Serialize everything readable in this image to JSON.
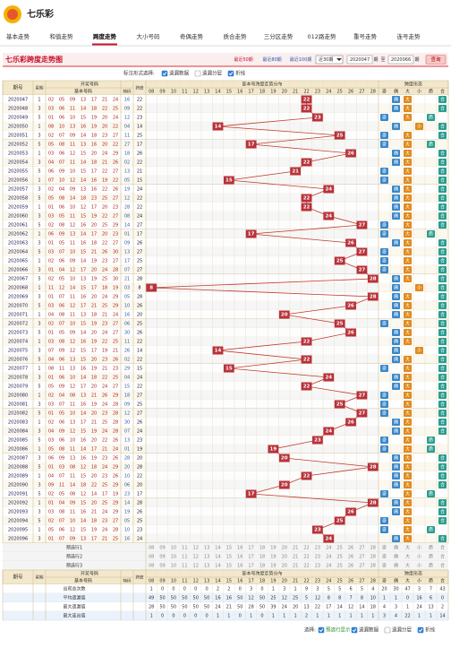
{
  "header": {
    "title": "七乐彩"
  },
  "nav": {
    "items": [
      "基本走势",
      "和值走势",
      "跨度走势",
      "大小号码",
      "奇偶走势",
      "质合走势",
      "三分区走势",
      "012路走势",
      "重号走势",
      "连号走势"
    ],
    "active": 2
  },
  "toolbar": {
    "title": "七乐彩跨度走势图",
    "ranges": [
      "最近50期",
      "最近80期",
      "最近100期"
    ],
    "range_active": 0,
    "select": "近30期",
    "from": "2020047",
    "period_word": "期",
    "to_word": "至",
    "to": "2020066",
    "query": "查询"
  },
  "options": {
    "label": "标注形式选择:",
    "items": [
      "遗漏数据",
      "遗漏分层",
      "折线"
    ],
    "checked": [
      true,
      false,
      true
    ]
  },
  "table": {
    "headers": {
      "period": "期号",
      "week": "星期",
      "draw": "开奖号码",
      "base": "基本号码",
      "special": "特码",
      "span": "跨度",
      "dist": "基本号跨度走势分布",
      "form": "跨度形态"
    },
    "columns": [
      "08",
      "09",
      "10",
      "11",
      "12",
      "13",
      "14",
      "15",
      "16",
      "17",
      "18",
      "19",
      "20",
      "21",
      "22",
      "23",
      "24",
      "25",
      "26",
      "27",
      "28"
    ],
    "forms": [
      "奇",
      "偶",
      "大",
      "小",
      "质",
      "合"
    ],
    "rows": [
      {
        "period": "2020047",
        "week": "1",
        "nums": [
          "02",
          "05",
          "09",
          "13",
          "17",
          "21",
          "24"
        ],
        "special": "16",
        "span": 22
      },
      {
        "period": "2020048",
        "week": "3",
        "nums": [
          "03",
          "06",
          "11",
          "14",
          "18",
          "22",
          "25"
        ],
        "special": "09",
        "span": 22
      },
      {
        "period": "2020049",
        "week": "5",
        "nums": [
          "01",
          "06",
          "10",
          "15",
          "19",
          "20",
          "24"
        ],
        "special": "12",
        "span": 23
      },
      {
        "period": "2020050",
        "week": "1",
        "nums": [
          "08",
          "10",
          "13",
          "16",
          "19",
          "20",
          "22"
        ],
        "special": "04",
        "span": 14
      },
      {
        "period": "2020051",
        "week": "3",
        "nums": [
          "02",
          "07",
          "09",
          "14",
          "18",
          "23",
          "27"
        ],
        "special": "11",
        "span": 25
      },
      {
        "period": "2020052",
        "week": "5",
        "nums": [
          "05",
          "08",
          "11",
          "13",
          "16",
          "20",
          "22"
        ],
        "special": "27",
        "span": 17
      },
      {
        "period": "2020053",
        "week": "1",
        "nums": [
          "03",
          "06",
          "12",
          "15",
          "20",
          "24",
          "29"
        ],
        "special": "18",
        "span": 26
      },
      {
        "period": "2020054",
        "week": "3",
        "nums": [
          "04",
          "07",
          "11",
          "14",
          "18",
          "21",
          "26"
        ],
        "special": "02",
        "span": 22
      },
      {
        "period": "2020055",
        "week": "5",
        "nums": [
          "06",
          "09",
          "10",
          "15",
          "17",
          "22",
          "27"
        ],
        "special": "13",
        "span": 21
      },
      {
        "period": "2020056",
        "week": "1",
        "nums": [
          "07",
          "10",
          "12",
          "14",
          "16",
          "19",
          "22"
        ],
        "special": "05",
        "span": 15
      },
      {
        "period": "2020057",
        "week": "3",
        "nums": [
          "02",
          "04",
          "09",
          "13",
          "16",
          "22",
          "26"
        ],
        "special": "19",
        "span": 24
      },
      {
        "period": "2020058",
        "week": "5",
        "nums": [
          "05",
          "08",
          "14",
          "18",
          "23",
          "25",
          "27"
        ],
        "special": "12",
        "span": 22
      },
      {
        "period": "2020059",
        "week": "1",
        "nums": [
          "01",
          "06",
          "10",
          "12",
          "17",
          "20",
          "23"
        ],
        "special": "28",
        "span": 22
      },
      {
        "period": "2020060",
        "week": "3",
        "nums": [
          "03",
          "05",
          "11",
          "15",
          "19",
          "22",
          "27"
        ],
        "special": "08",
        "span": 24
      },
      {
        "period": "2020061",
        "week": "5",
        "nums": [
          "02",
          "08",
          "12",
          "16",
          "20",
          "25",
          "29"
        ],
        "special": "14",
        "span": 27
      },
      {
        "period": "2020062",
        "week": "1",
        "nums": [
          "06",
          "09",
          "13",
          "14",
          "17",
          "20",
          "23"
        ],
        "special": "01",
        "span": 17
      },
      {
        "period": "2020063",
        "week": "3",
        "nums": [
          "01",
          "05",
          "11",
          "16",
          "18",
          "22",
          "27"
        ],
        "special": "09",
        "span": 26
      },
      {
        "period": "2020064",
        "week": "5",
        "nums": [
          "03",
          "07",
          "10",
          "15",
          "21",
          "26",
          "30"
        ],
        "special": "13",
        "span": 27
      },
      {
        "period": "2020065",
        "week": "1",
        "nums": [
          "02",
          "06",
          "09",
          "14",
          "19",
          "23",
          "27"
        ],
        "special": "17",
        "span": 25
      },
      {
        "period": "2020066",
        "week": "3",
        "nums": [
          "01",
          "04",
          "12",
          "17",
          "20",
          "24",
          "28"
        ],
        "special": "07",
        "span": 27
      },
      {
        "period": "2020067",
        "week": "5",
        "nums": [
          "02",
          "05",
          "10",
          "13",
          "19",
          "25",
          "30"
        ],
        "special": "21",
        "span": 28
      },
      {
        "period": "2020068",
        "week": "1",
        "nums": [
          "11",
          "12",
          "14",
          "15",
          "17",
          "18",
          "19"
        ],
        "special": "03",
        "span": 8
      },
      {
        "period": "2020069",
        "week": "3",
        "nums": [
          "01",
          "07",
          "11",
          "16",
          "20",
          "24",
          "29"
        ],
        "special": "05",
        "span": 28
      },
      {
        "period": "2020070",
        "week": "5",
        "nums": [
          "03",
          "06",
          "12",
          "17",
          "21",
          "25",
          "29"
        ],
        "special": "10",
        "span": 26
      },
      {
        "period": "2020071",
        "week": "1",
        "nums": [
          "04",
          "08",
          "11",
          "13",
          "18",
          "21",
          "24"
        ],
        "special": "16",
        "span": 20
      },
      {
        "period": "2020072",
        "week": "3",
        "nums": [
          "02",
          "07",
          "10",
          "15",
          "19",
          "23",
          "27"
        ],
        "special": "06",
        "span": 25
      },
      {
        "period": "2020073",
        "week": "5",
        "nums": [
          "01",
          "05",
          "09",
          "14",
          "20",
          "24",
          "27"
        ],
        "special": "30",
        "span": 26
      },
      {
        "period": "2020074",
        "week": "1",
        "nums": [
          "03",
          "08",
          "12",
          "16",
          "19",
          "22",
          "25"
        ],
        "special": "11",
        "span": 22
      },
      {
        "period": "2020075",
        "week": "3",
        "nums": [
          "07",
          "09",
          "12",
          "15",
          "17",
          "19",
          "21"
        ],
        "special": "26",
        "span": 14
      },
      {
        "period": "2020076",
        "week": "5",
        "nums": [
          "04",
          "06",
          "13",
          "15",
          "20",
          "23",
          "26"
        ],
        "special": "02",
        "span": 22
      },
      {
        "period": "2020077",
        "week": "1",
        "nums": [
          "08",
          "11",
          "13",
          "16",
          "19",
          "21",
          "23"
        ],
        "special": "29",
        "span": 15
      },
      {
        "period": "2020078",
        "week": "3",
        "nums": [
          "01",
          "06",
          "10",
          "14",
          "18",
          "22",
          "25"
        ],
        "special": "04",
        "span": 24
      },
      {
        "period": "2020079",
        "week": "5",
        "nums": [
          "05",
          "09",
          "12",
          "17",
          "20",
          "24",
          "27"
        ],
        "special": "15",
        "span": 22
      },
      {
        "period": "2020080",
        "week": "1",
        "nums": [
          "02",
          "04",
          "08",
          "13",
          "21",
          "26",
          "29"
        ],
        "special": "18",
        "span": 27
      },
      {
        "period": "2020081",
        "week": "3",
        "nums": [
          "03",
          "07",
          "11",
          "16",
          "19",
          "24",
          "28"
        ],
        "special": "09",
        "span": 25
      },
      {
        "period": "2020082",
        "week": "5",
        "nums": [
          "01",
          "05",
          "10",
          "14",
          "20",
          "23",
          "28"
        ],
        "special": "12",
        "span": 27
      },
      {
        "period": "2020083",
        "week": "1",
        "nums": [
          "02",
          "06",
          "13",
          "17",
          "21",
          "25",
          "28"
        ],
        "special": "30",
        "span": 26
      },
      {
        "period": "2020084",
        "week": "3",
        "nums": [
          "04",
          "09",
          "12",
          "15",
          "19",
          "24",
          "28"
        ],
        "special": "07",
        "span": 24
      },
      {
        "period": "2020085",
        "week": "5",
        "nums": [
          "03",
          "06",
          "10",
          "16",
          "20",
          "22",
          "26"
        ],
        "special": "13",
        "span": 23
      },
      {
        "period": "2020086",
        "week": "1",
        "nums": [
          "05",
          "08",
          "11",
          "14",
          "17",
          "21",
          "24"
        ],
        "special": "01",
        "span": 19
      },
      {
        "period": "2020087",
        "week": "3",
        "nums": [
          "06",
          "09",
          "13",
          "16",
          "19",
          "23",
          "26"
        ],
        "special": "28",
        "span": 20
      },
      {
        "period": "2020088",
        "week": "5",
        "nums": [
          "01",
          "03",
          "08",
          "12",
          "18",
          "24",
          "29"
        ],
        "special": "20",
        "span": 28
      },
      {
        "period": "2020089",
        "week": "1",
        "nums": [
          "04",
          "07",
          "11",
          "15",
          "20",
          "23",
          "26"
        ],
        "special": "10",
        "span": 22
      },
      {
        "period": "2020090",
        "week": "3",
        "nums": [
          "09",
          "11",
          "14",
          "18",
          "22",
          "25",
          "29"
        ],
        "special": "06",
        "span": 20
      },
      {
        "period": "2020091",
        "week": "5",
        "nums": [
          "02",
          "05",
          "08",
          "12",
          "14",
          "17",
          "19"
        ],
        "special": "23",
        "span": 17
      },
      {
        "period": "2020092",
        "week": "1",
        "nums": [
          "01",
          "04",
          "09",
          "15",
          "20",
          "25",
          "29"
        ],
        "special": "14",
        "span": 28
      },
      {
        "period": "2020093",
        "week": "3",
        "nums": [
          "03",
          "08",
          "11",
          "16",
          "21",
          "24",
          "29"
        ],
        "special": "19",
        "span": 26
      },
      {
        "period": "2020094",
        "week": "5",
        "nums": [
          "02",
          "07",
          "10",
          "14",
          "18",
          "23",
          "27"
        ],
        "special": "05",
        "span": 25
      },
      {
        "period": "2020095",
        "week": "1",
        "nums": [
          "05",
          "06",
          "12",
          "15",
          "19",
          "24",
          "28"
        ],
        "special": "10",
        "span": 23
      },
      {
        "period": "2020096",
        "week": "3",
        "nums": [
          "01",
          "07",
          "09",
          "13",
          "17",
          "21",
          "25"
        ],
        "special": "16",
        "span": 24
      }
    ],
    "preselect": [
      "预选行1",
      "预选行2",
      "预选行3"
    ],
    "stats": [
      {
        "label": "出现总次数",
        "values": [
          1,
          0,
          0,
          0,
          0,
          0,
          2,
          2,
          0,
          3,
          0,
          1,
          3,
          1,
          9,
          3,
          5,
          5,
          6,
          5,
          4
        ],
        "forms": [
          20,
          30,
          47,
          3,
          7,
          43
        ]
      },
      {
        "label": "平均遗漏值",
        "values": [
          49,
          50,
          50,
          50,
          50,
          50,
          16,
          16,
          50,
          12,
          50,
          25,
          12,
          25,
          5,
          12,
          8,
          8,
          7,
          8,
          10
        ],
        "forms": [
          1,
          1,
          0,
          16,
          6,
          0
        ]
      },
      {
        "label": "最大遗漏值",
        "values": [
          28,
          50,
          50,
          50,
          50,
          50,
          24,
          21,
          50,
          28,
          50,
          39,
          24,
          20,
          13,
          22,
          17,
          14,
          12,
          14,
          18
        ],
        "forms": [
          4,
          3,
          1,
          24,
          13,
          2
        ]
      },
      {
        "label": "最大连出值",
        "values": [
          1,
          0,
          0,
          0,
          0,
          0,
          1,
          1,
          0,
          1,
          0,
          1,
          1,
          1,
          2,
          1,
          1,
          1,
          1,
          1,
          1
        ],
        "forms": [
          3,
          4,
          22,
          1,
          1,
          14
        ]
      }
    ]
  },
  "footer": {
    "label": "选择:",
    "items": [
      "预选行显示",
      "遗漏数据",
      "遗漏分层",
      "折线"
    ],
    "checked": [
      true,
      true,
      false,
      true
    ]
  }
}
